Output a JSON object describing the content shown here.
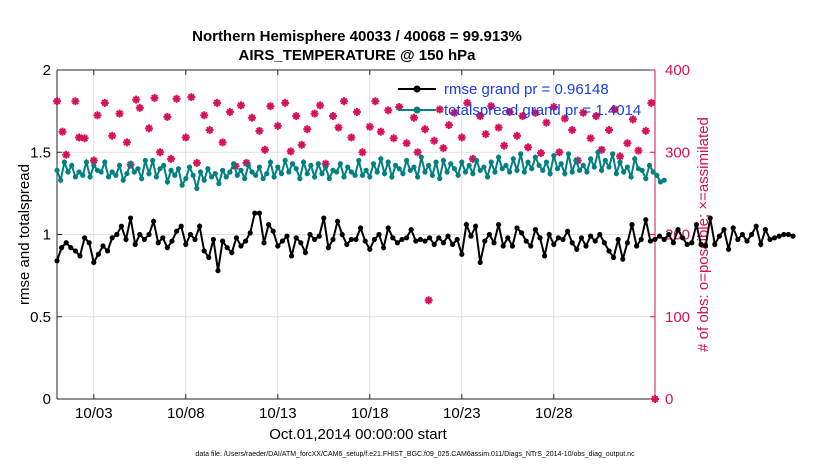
{
  "colors": {
    "rmse": "#000000",
    "spread": "#008080",
    "obs": "#d6105a",
    "axis": "#262626",
    "grid": "#d9d9d9"
  },
  "chart_data": {
    "type": "line",
    "title": "Northern Hemisphere 40033 / 40068 = 99.913%",
    "subtitle": "AIRS_TEMPERATURE @ 150 hPa",
    "xlabel": "Oct.01,2014 00:00:00 start",
    "ylabel_left": "rmse and totalspread",
    "ylabel_right": "# of obs: o=possible; ×=assimilated",
    "x_range_days": [
      1,
      33.5
    ],
    "x_ticks": [
      {
        "day": 3,
        "label": "10/03"
      },
      {
        "day": 8,
        "label": "10/08"
      },
      {
        "day": 13,
        "label": "10/13"
      },
      {
        "day": 18,
        "label": "10/18"
      },
      {
        "day": 23,
        "label": "10/23"
      },
      {
        "day": 28,
        "label": "10/28"
      }
    ],
    "ylim_left": [
      0,
      2
    ],
    "yticks_left": [
      "0",
      "0.5",
      "1",
      "1.5",
      "2"
    ],
    "ylim_right": [
      0,
      400
    ],
    "yticks_right": [
      "0",
      "100",
      "200",
      "300",
      "400"
    ],
    "grid": true,
    "legend_location": "top-right",
    "legend": [
      "rmse grand pr = 0.96148",
      "totalspread grand pr = 1.4014"
    ],
    "footnote": "data file: /Users/raeder/DAI/ATM_forcXX/CAM6_setup/f.e21.FHIST_BGC.f09_025.CAM6assim.011/Diags_NTrS_2014-10/obs_diag_output.nc",
    "series": [
      {
        "name": "rmse grand pr = 0.96148",
        "axis": "left",
        "values": [
          0.84,
          0.92,
          0.95,
          0.92,
          0.9,
          0.87,
          0.98,
          0.95,
          0.83,
          0.88,
          0.93,
          0.9,
          0.98,
          1.0,
          1.05,
          0.97,
          1.1,
          0.94,
          1.0,
          0.97,
          1.0,
          1.08,
          0.95,
          0.98,
          0.92,
          0.96,
          1.02,
          1.05,
          0.94,
          1.0,
          0.97,
          1.05,
          0.9,
          0.86,
          0.97,
          0.78,
          0.96,
          0.92,
          0.89,
          0.98,
          0.93,
          0.96,
          1.01,
          1.13,
          1.13,
          0.95,
          1.06,
          1.02,
          0.93,
          0.96,
          0.99,
          0.87,
          0.98,
          0.95,
          0.89,
          1.0,
          0.97,
          0.99,
          1.1,
          0.92,
          0.97,
          1.08,
          1.0,
          0.94,
          0.97,
          0.97,
          1.04,
          0.96,
          0.91,
          0.97,
          1.0,
          0.92,
          1.04,
          0.98,
          0.95,
          0.97,
          0.98,
          1.03,
          0.96,
          0.97,
          0.96,
          0.98,
          0.94,
          0.98,
          0.95,
          0.99,
          0.94,
          0.97,
          0.88,
          1.06,
          0.99,
          1.05,
          0.83,
          0.96,
          1.0,
          0.95,
          1.06,
          0.93,
          0.98,
          0.93,
          1.04,
          1.01,
          0.96,
          0.93,
          1.03,
          0.98,
          0.87,
          1.0,
          0.94,
          0.98,
          0.97,
          1.02,
          0.95,
          0.91,
          0.98,
          0.93,
          0.99,
          0.96,
          1.0,
          0.95,
          0.9,
          0.86,
          0.97,
          0.85,
          0.95,
          1.06,
          0.93,
          0.97,
          1.09,
          0.96,
          0.97,
          0.99,
          0.97,
          1.0,
          0.95,
          1.03,
          0.98,
          0.94,
          0.95,
          1.06,
          0.94,
          0.93,
          1.1,
          0.94,
          0.99,
          1.03,
          0.91,
          1.04,
          0.97,
          1.0,
          0.96,
          1.0,
          1.05,
          0.94,
          1.03,
          0.97,
          0.98,
          0.99,
          1.0,
          1.0,
          0.99
        ],
        "x_start_day": 1.0,
        "x_step_day": 0.25
      },
      {
        "name": "totalspread grand pr = 1.4014",
        "axis": "left",
        "values": [
          1.39,
          1.33,
          1.44,
          1.38,
          1.42,
          1.35,
          1.38,
          1.36,
          1.44,
          1.35,
          1.42,
          1.39,
          1.38,
          1.44,
          1.35,
          1.38,
          1.36,
          1.42,
          1.33,
          1.37,
          1.43,
          1.38,
          1.4,
          1.34,
          1.45,
          1.37,
          1.45,
          1.35,
          1.4,
          1.42,
          1.32,
          1.39,
          1.36,
          1.4,
          1.3,
          1.34,
          1.41,
          1.36,
          1.28,
          1.38,
          1.33,
          1.4,
          1.35,
          1.37,
          1.31,
          1.39,
          1.35,
          1.38,
          1.43,
          1.36,
          1.39,
          1.34,
          1.42,
          1.38,
          1.36,
          1.41,
          1.34,
          1.37,
          1.44,
          1.35,
          1.41,
          1.37,
          1.45,
          1.38,
          1.43,
          1.4,
          1.34,
          1.44,
          1.37,
          1.42,
          1.35,
          1.43,
          1.37,
          1.41,
          1.34,
          1.39,
          1.38,
          1.43,
          1.35,
          1.41,
          1.38,
          1.36,
          1.45,
          1.36,
          1.39,
          1.35,
          1.43,
          1.38,
          1.46,
          1.37,
          1.44,
          1.35,
          1.42,
          1.4,
          1.37,
          1.45,
          1.39,
          1.41,
          1.35,
          1.47,
          1.38,
          1.42,
          1.36,
          1.44,
          1.34,
          1.45,
          1.38,
          1.43,
          1.4,
          1.36,
          1.44,
          1.38,
          1.42,
          1.37,
          1.45,
          1.39,
          1.41,
          1.35,
          1.44,
          1.38,
          1.47,
          1.4,
          1.42,
          1.38,
          1.46,
          1.39,
          1.49,
          1.38,
          1.44,
          1.4,
          1.47,
          1.42,
          1.39,
          1.44,
          1.37,
          1.48,
          1.4,
          1.43,
          1.37,
          1.49,
          1.38,
          1.45,
          1.39,
          1.42,
          1.38,
          1.46,
          1.41,
          1.5,
          1.39,
          1.45,
          1.41,
          1.49,
          1.37,
          1.44,
          1.38,
          1.41,
          1.35,
          1.46,
          1.4,
          1.39,
          1.34,
          1.42,
          1.38,
          1.36,
          1.32,
          1.33
        ],
        "x_start_day": 1.0,
        "x_step_day": 0.2
      },
      {
        "name": "# of obs possible / assimilated",
        "axis": "right",
        "points": [
          [
            1.0,
            362
          ],
          [
            1.3,
            325
          ],
          [
            1.5,
            297
          ],
          [
            2.0,
            362
          ],
          [
            2.2,
            318
          ],
          [
            2.5,
            317
          ],
          [
            3.0,
            290
          ],
          [
            3.2,
            345
          ],
          [
            3.6,
            360
          ],
          [
            4.0,
            320
          ],
          [
            4.4,
            347
          ],
          [
            4.8,
            312
          ],
          [
            5.0,
            285
          ],
          [
            5.3,
            364
          ],
          [
            5.5,
            354
          ],
          [
            6.0,
            329
          ],
          [
            6.3,
            366
          ],
          [
            6.6,
            300
          ],
          [
            7.0,
            343
          ],
          [
            7.2,
            292
          ],
          [
            7.5,
            365
          ],
          [
            8.0,
            318
          ],
          [
            8.3,
            367
          ],
          [
            8.6,
            287
          ],
          [
            9.0,
            345
          ],
          [
            9.3,
            327
          ],
          [
            9.7,
            360
          ],
          [
            10.0,
            312
          ],
          [
            10.4,
            349
          ],
          [
            10.7,
            283
          ],
          [
            11.0,
            357
          ],
          [
            11.3,
            287
          ],
          [
            11.6,
            342
          ],
          [
            12.0,
            326
          ],
          [
            12.3,
            303
          ],
          [
            12.6,
            356
          ],
          [
            13.0,
            332
          ],
          [
            13.4,
            360
          ],
          [
            13.7,
            301
          ],
          [
            14.0,
            344
          ],
          [
            14.3,
            309
          ],
          [
            14.6,
            328
          ],
          [
            15.0,
            347
          ],
          [
            15.3,
            357
          ],
          [
            15.6,
            286
          ],
          [
            16.0,
            344
          ],
          [
            16.3,
            330
          ],
          [
            16.6,
            362
          ],
          [
            17.0,
            318
          ],
          [
            17.3,
            349
          ],
          [
            17.6,
            300
          ],
          [
            18.0,
            331
          ],
          [
            18.3,
            362
          ],
          [
            18.6,
            325
          ],
          [
            19.0,
            351
          ],
          [
            19.3,
            317
          ],
          [
            19.6,
            355
          ],
          [
            20.0,
            311
          ],
          [
            20.4,
            342
          ],
          [
            20.6,
            300
          ],
          [
            21.0,
            328
          ],
          [
            21.2,
            120
          ],
          [
            21.5,
            314
          ],
          [
            21.8,
            352
          ],
          [
            22.0,
            305
          ],
          [
            22.3,
            333
          ],
          [
            22.6,
            348
          ],
          [
            23.0,
            318
          ],
          [
            23.3,
            360
          ],
          [
            23.6,
            292
          ],
          [
            24.0,
            344
          ],
          [
            24.3,
            322
          ],
          [
            24.6,
            356
          ],
          [
            25.0,
            330
          ],
          [
            25.3,
            308
          ],
          [
            25.6,
            349
          ],
          [
            26.0,
            320
          ],
          [
            26.3,
            344
          ],
          [
            26.6,
            306
          ],
          [
            27.0,
            348
          ],
          [
            27.3,
            299
          ],
          [
            27.6,
            336
          ],
          [
            28.0,
            355
          ],
          [
            28.3,
            300
          ],
          [
            28.6,
            341
          ],
          [
            29.0,
            327
          ],
          [
            29.3,
            290
          ],
          [
            29.6,
            348
          ],
          [
            30.0,
            317
          ],
          [
            30.3,
            344
          ],
          [
            30.6,
            303
          ],
          [
            31.0,
            327
          ],
          [
            31.3,
            352
          ],
          [
            31.6,
            295
          ],
          [
            32.0,
            311
          ],
          [
            32.3,
            340
          ],
          [
            32.6,
            302
          ],
          [
            33.0,
            326
          ],
          [
            33.3,
            360
          ],
          [
            33.5,
            0
          ]
        ]
      }
    ]
  }
}
